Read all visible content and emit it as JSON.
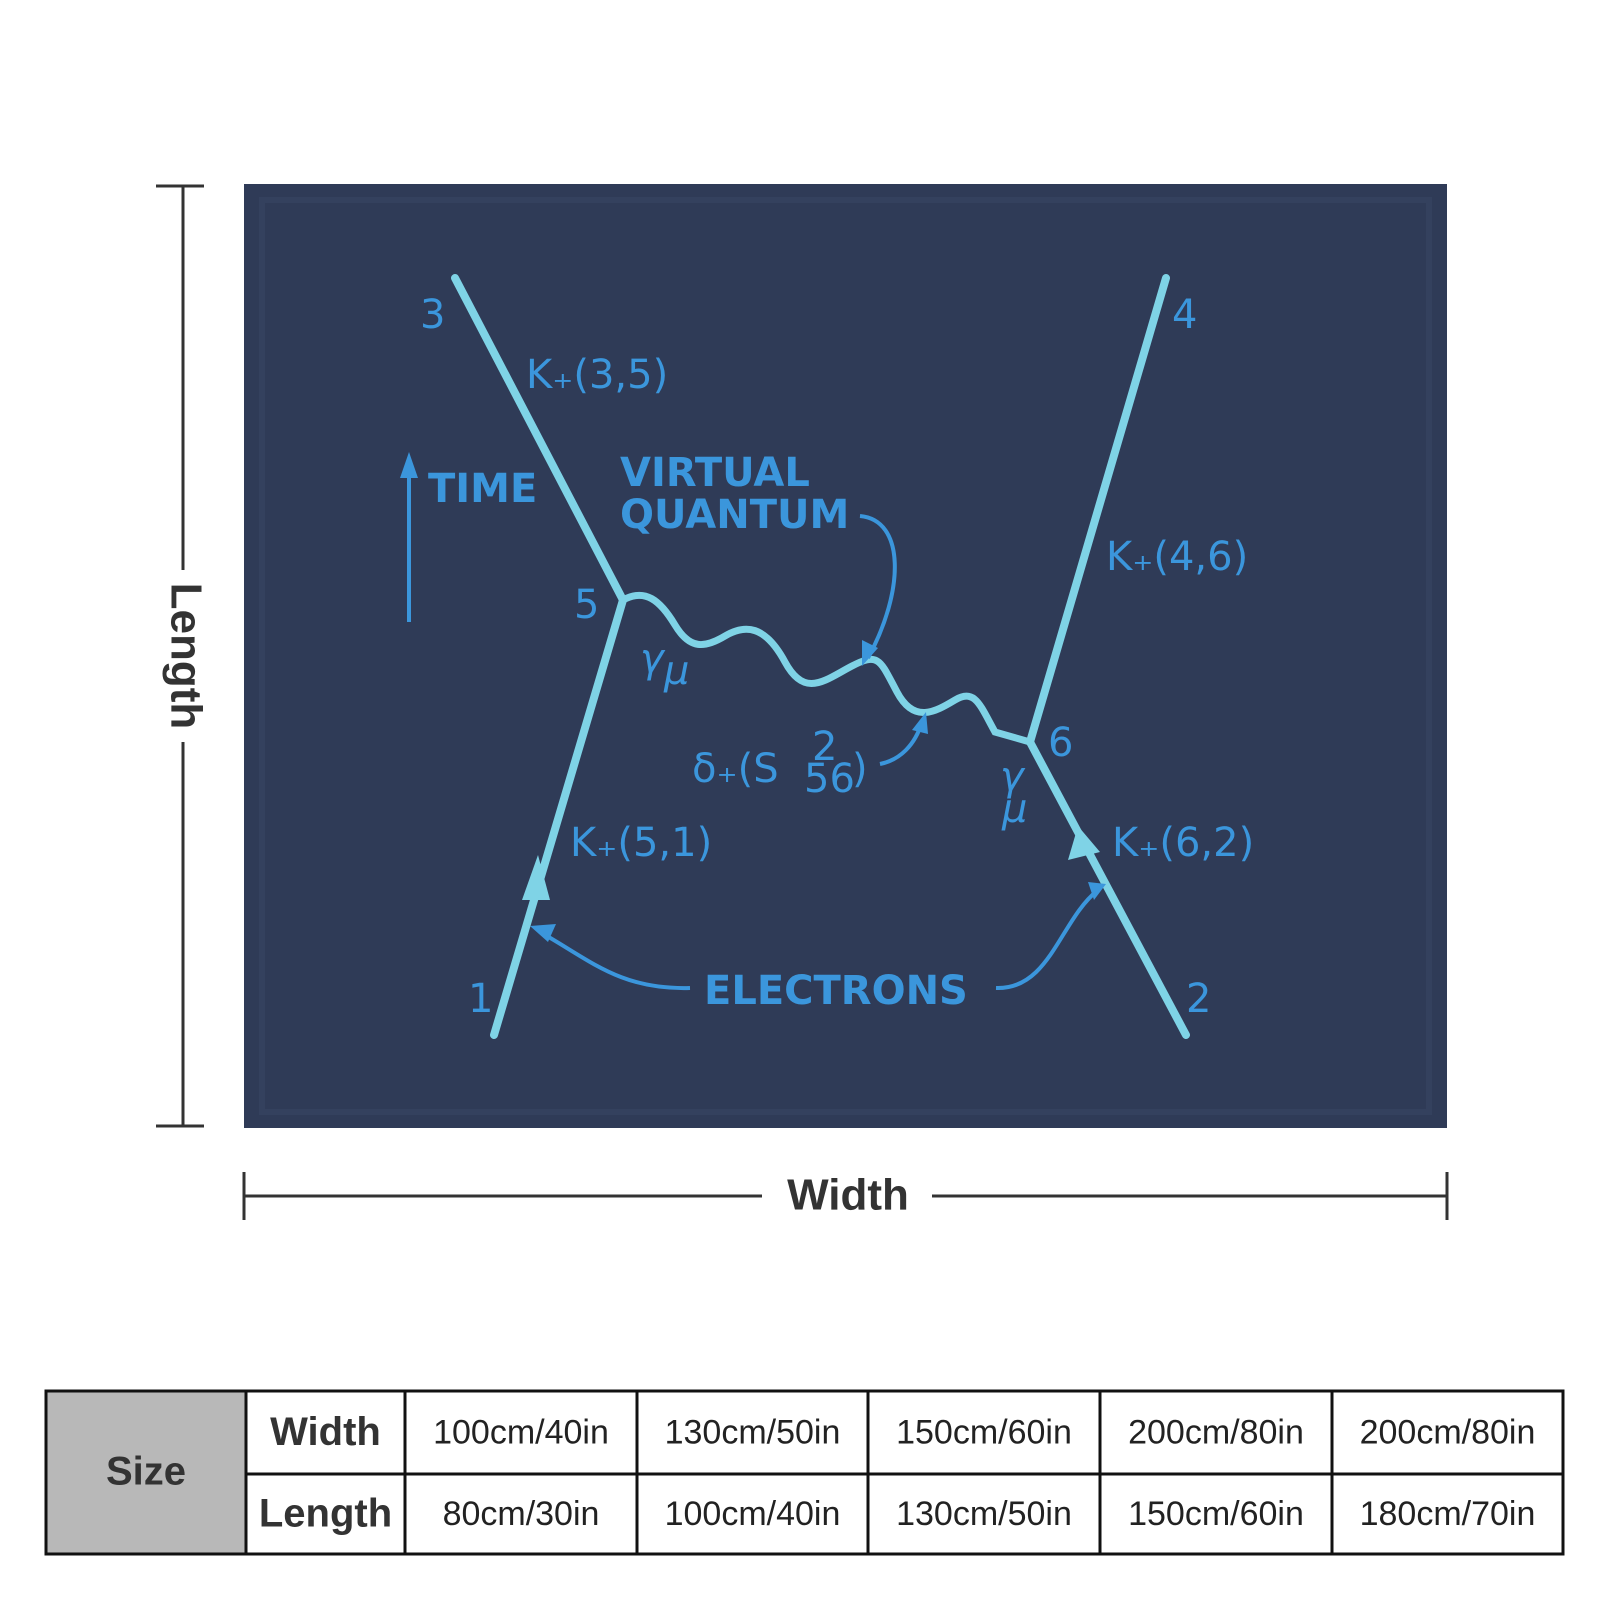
{
  "dimensions": {
    "length": "Length",
    "width": "Width"
  },
  "diagram": {
    "points": {
      "p1": "1",
      "p2": "2",
      "p3": "3",
      "p4": "4",
      "p5": "5",
      "p6": "6"
    },
    "propagators": {
      "k35": "K₊(3,5)",
      "k46": "K₊(4,6)",
      "k51": "K₊(5,1)",
      "k62": "K₊(6,2)"
    },
    "time": "TIME",
    "virtual_quantum": [
      "VIRTUAL",
      "QUANTUM"
    ],
    "gamma": {
      "symbol": "γ",
      "index": "μ"
    },
    "delta": {
      "main": "δ₊(S",
      "sup": "2",
      "sub": "56",
      "close": ")"
    },
    "electrons": "ELECTRONS"
  },
  "table": {
    "header": "Size",
    "rows": [
      [
        "Width",
        "100cm/40in",
        "130cm/50in",
        "150cm/60in",
        "200cm/80in",
        "200cm/80in"
      ],
      [
        "Length",
        "80cm/30in",
        "100cm/40in",
        "130cm/50in",
        "150cm/60in",
        "180cm/70in"
      ]
    ]
  }
}
